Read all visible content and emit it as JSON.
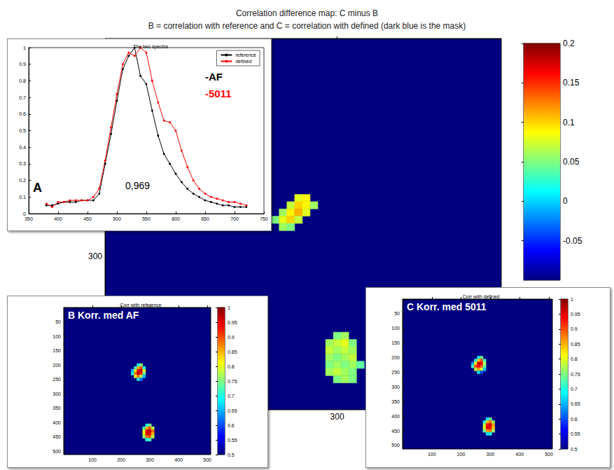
{
  "chart_data": [
    {
      "type": "heatmap",
      "title": "Correlation difference map: C minus B",
      "subtitle": "B = correlation with reference and C = correlation with defined (dark blue is the mask)",
      "xlim": [
        0,
        512
      ],
      "ylim": [
        0,
        512
      ],
      "xticks": [
        300
      ],
      "yticks": [
        300
      ],
      "cells": [
        [
          250,
          220,
          0.08
        ],
        [
          260,
          220,
          0.09
        ],
        [
          240,
          230,
          0.07
        ],
        [
          250,
          230,
          0.1
        ],
        [
          260,
          230,
          0.09
        ],
        [
          270,
          230,
          0.06
        ],
        [
          230,
          240,
          0.06
        ],
        [
          240,
          240,
          0.09
        ],
        [
          250,
          240,
          0.11
        ],
        [
          260,
          240,
          0.08
        ],
        [
          220,
          250,
          0.05
        ],
        [
          230,
          250,
          0.08
        ],
        [
          240,
          250,
          0.1
        ],
        [
          250,
          250,
          0.07
        ],
        [
          230,
          260,
          0.06
        ],
        [
          240,
          260,
          0.05
        ],
        [
          300,
          410,
          0.05
        ],
        [
          310,
          410,
          0.06
        ],
        [
          290,
          420,
          0.06
        ],
        [
          300,
          420,
          0.07
        ],
        [
          310,
          420,
          0.08
        ],
        [
          320,
          420,
          0.05
        ],
        [
          290,
          430,
          0.07
        ],
        [
          300,
          430,
          0.06
        ],
        [
          310,
          430,
          0.07
        ],
        [
          320,
          430,
          0.06
        ],
        [
          290,
          440,
          0.06
        ],
        [
          300,
          440,
          0.05
        ],
        [
          310,
          440,
          0.06
        ],
        [
          320,
          440,
          0.07
        ],
        [
          290,
          450,
          0.05
        ],
        [
          300,
          450,
          0.06
        ],
        [
          310,
          450,
          0.05
        ],
        [
          320,
          450,
          0.06
        ],
        [
          330,
          450,
          0.04
        ],
        [
          290,
          460,
          0.06
        ],
        [
          300,
          460,
          0.07
        ],
        [
          310,
          460,
          0.06
        ],
        [
          320,
          460,
          0.05
        ],
        [
          300,
          470,
          0.05
        ],
        [
          310,
          470,
          0.06
        ],
        [
          320,
          470,
          0.05
        ]
      ],
      "colorbar_lim": [
        -0.1,
        0.2
      ],
      "colorbar_ticks": [
        -0.05,
        0,
        0.05,
        0.1,
        0.15,
        0.2
      ]
    },
    {
      "type": "line",
      "title": "The two spectra",
      "x": [
        380,
        390,
        400,
        410,
        420,
        430,
        440,
        450,
        460,
        470,
        480,
        490,
        500,
        510,
        520,
        530,
        540,
        550,
        560,
        570,
        580,
        590,
        600,
        610,
        620,
        630,
        640,
        650,
        660,
        670,
        680,
        690,
        700,
        710,
        720
      ],
      "series": [
        {
          "name": "reference",
          "color": "#000000",
          "values": [
            0.05,
            0.05,
            0.06,
            0.07,
            0.07,
            0.07,
            0.08,
            0.08,
            0.08,
            0.12,
            0.3,
            0.48,
            0.68,
            0.87,
            0.95,
            1,
            0.83,
            0.78,
            0.62,
            0.47,
            0.36,
            0.3,
            0.24,
            0.19,
            0.15,
            0.12,
            0.1,
            0.08,
            0.07,
            0.06,
            0.05,
            0.05,
            0.04,
            0.04,
            0.04
          ]
        },
        {
          "name": "defined",
          "color": "#ff0000",
          "values": [
            0.06,
            0.04,
            0.07,
            0.07,
            0.08,
            0.08,
            0.08,
            0.08,
            0.1,
            0.15,
            0.32,
            0.52,
            0.72,
            0.9,
            0.97,
            0.95,
            1,
            0.97,
            0.8,
            0.67,
            0.56,
            0.55,
            0.5,
            0.38,
            0.28,
            0.2,
            0.15,
            0.12,
            0.1,
            0.09,
            0.08,
            0.07,
            0.07,
            0.06,
            0.05
          ]
        }
      ],
      "xlim": [
        350,
        750
      ],
      "xticks": [
        350,
        400,
        450,
        500,
        550,
        600,
        650,
        700,
        750
      ],
      "ylim": [
        0,
        1
      ],
      "yticks": [
        0,
        0.1,
        0.2,
        0.3,
        0.4,
        0.5,
        0.6,
        0.7,
        0.8,
        0.9,
        1
      ],
      "legend": "upper right",
      "marker": "circle",
      "annotations": [
        {
          "text": "-AF",
          "color": "#000000"
        },
        {
          "text": "-5011",
          "color": "#ff0000"
        },
        {
          "text": "A",
          "color": "#000000"
        },
        {
          "text": "0,969",
          "color": "#000000"
        }
      ]
    },
    {
      "type": "heatmap",
      "title": "Corr with reference",
      "annotations": [
        {
          "text": "B Korr. med AF",
          "color": "#ffffff"
        }
      ],
      "xlim": [
        0,
        512
      ],
      "ylim": [
        0,
        512
      ],
      "xticks": [
        100,
        200,
        300,
        400,
        500
      ],
      "yticks": [
        50,
        100,
        150,
        200,
        250,
        300,
        350,
        400,
        450,
        500
      ],
      "cells": [
        [
          260,
          200,
          0.7
        ],
        [
          270,
          200,
          0.75
        ],
        [
          250,
          210,
          0.72
        ],
        [
          260,
          210,
          0.85
        ],
        [
          270,
          210,
          0.9
        ],
        [
          280,
          210,
          0.7
        ],
        [
          240,
          220,
          0.65
        ],
        [
          250,
          220,
          0.8
        ],
        [
          260,
          220,
          0.95
        ],
        [
          270,
          220,
          0.97
        ],
        [
          280,
          220,
          0.8
        ],
        [
          240,
          230,
          0.7
        ],
        [
          250,
          230,
          0.88
        ],
        [
          260,
          230,
          0.96
        ],
        [
          270,
          230,
          0.92
        ],
        [
          280,
          230,
          0.75
        ],
        [
          250,
          240,
          0.8
        ],
        [
          260,
          240,
          0.88
        ],
        [
          270,
          240,
          0.78
        ],
        [
          280,
          240,
          0.65
        ],
        [
          260,
          250,
          0.7
        ],
        [
          270,
          250,
          0.62
        ],
        [
          290,
          410,
          0.7
        ],
        [
          300,
          410,
          0.75
        ],
        [
          280,
          420,
          0.72
        ],
        [
          290,
          420,
          0.85
        ],
        [
          300,
          420,
          0.9
        ],
        [
          310,
          420,
          0.78
        ],
        [
          280,
          430,
          0.8
        ],
        [
          290,
          430,
          0.95
        ],
        [
          300,
          430,
          0.97
        ],
        [
          310,
          430,
          0.88
        ],
        [
          280,
          440,
          0.82
        ],
        [
          290,
          440,
          0.96
        ],
        [
          300,
          440,
          0.95
        ],
        [
          310,
          440,
          0.85
        ],
        [
          280,
          450,
          0.75
        ],
        [
          290,
          450,
          0.88
        ],
        [
          300,
          450,
          0.9
        ],
        [
          310,
          450,
          0.78
        ],
        [
          290,
          460,
          0.7
        ],
        [
          300,
          460,
          0.72
        ]
      ],
      "colorbar_lim": [
        0.5,
        1
      ],
      "colorbar_ticks": [
        0.5,
        0.55,
        0.6,
        0.65,
        0.7,
        0.75,
        0.8,
        0.85,
        0.9,
        0.95,
        1
      ]
    },
    {
      "type": "heatmap",
      "title": "Corr with defined",
      "annotations": [
        {
          "text": "C Korr. med 5011",
          "color": "#ffffff"
        }
      ],
      "xlim": [
        0,
        512
      ],
      "ylim": [
        0,
        512
      ],
      "xticks": [
        100,
        200,
        300,
        400,
        500
      ],
      "yticks": [
        50,
        100,
        150,
        200,
        250,
        300,
        350,
        400,
        450,
        500
      ],
      "cells": [
        [
          260,
          200,
          0.68
        ],
        [
          270,
          200,
          0.74
        ],
        [
          250,
          210,
          0.7
        ],
        [
          260,
          210,
          0.84
        ],
        [
          270,
          210,
          0.9
        ],
        [
          280,
          210,
          0.72
        ],
        [
          240,
          220,
          0.64
        ],
        [
          250,
          220,
          0.82
        ],
        [
          260,
          220,
          0.96
        ],
        [
          270,
          220,
          0.95
        ],
        [
          280,
          220,
          0.78
        ],
        [
          240,
          230,
          0.72
        ],
        [
          250,
          230,
          0.9
        ],
        [
          260,
          230,
          0.94
        ],
        [
          270,
          230,
          0.9
        ],
        [
          280,
          230,
          0.74
        ],
        [
          250,
          240,
          0.78
        ],
        [
          260,
          240,
          0.86
        ],
        [
          270,
          240,
          0.8
        ],
        [
          280,
          240,
          0.66
        ],
        [
          260,
          250,
          0.68
        ],
        [
          270,
          250,
          0.6
        ],
        [
          290,
          410,
          0.68
        ],
        [
          300,
          410,
          0.74
        ],
        [
          280,
          420,
          0.7
        ],
        [
          290,
          420,
          0.84
        ],
        [
          300,
          420,
          0.88
        ],
        [
          310,
          420,
          0.76
        ],
        [
          280,
          430,
          0.78
        ],
        [
          290,
          430,
          0.93
        ],
        [
          300,
          430,
          0.96
        ],
        [
          310,
          430,
          0.86
        ],
        [
          280,
          440,
          0.8
        ],
        [
          290,
          440,
          0.95
        ],
        [
          300,
          440,
          0.94
        ],
        [
          310,
          440,
          0.84
        ],
        [
          280,
          450,
          0.74
        ],
        [
          290,
          450,
          0.86
        ],
        [
          300,
          450,
          0.88
        ],
        [
          310,
          450,
          0.76
        ],
        [
          290,
          460,
          0.68
        ],
        [
          300,
          460,
          0.7
        ]
      ],
      "colorbar_lim": [
        0.5,
        1
      ],
      "colorbar_ticks": [
        0.5,
        0.55,
        0.6,
        0.65,
        0.7,
        0.75,
        0.8,
        0.85,
        0.9,
        0.95,
        1
      ]
    }
  ]
}
